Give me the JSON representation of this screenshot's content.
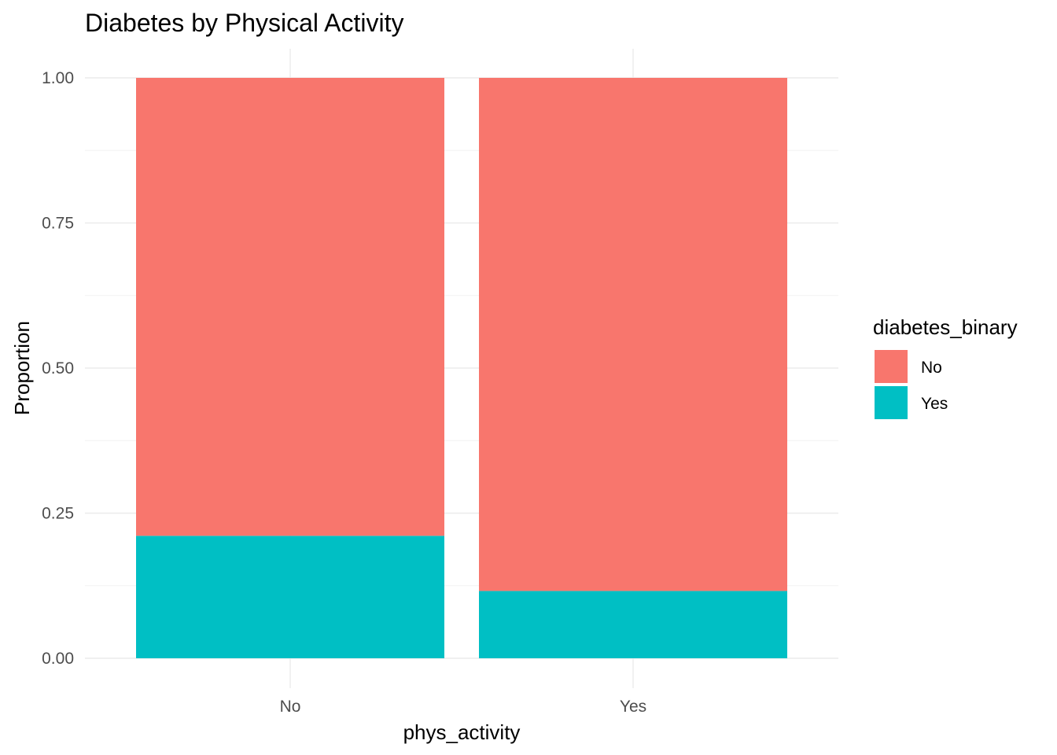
{
  "chart_data": {
    "type": "bar",
    "stacked": true,
    "position": "fill",
    "title": "Diabetes by Physical Activity",
    "xlabel": "phys_activity",
    "ylabel": "Proportion",
    "categories": [
      "No",
      "Yes"
    ],
    "series": [
      {
        "name": "Yes",
        "color": "#00BFC4",
        "values": [
          0.211,
          0.116
        ]
      },
      {
        "name": "No",
        "color": "#F8766D",
        "values": [
          0.789,
          0.884
        ]
      }
    ],
    "ylim": [
      0,
      1
    ],
    "yticks": [
      "0.00",
      "0.25",
      "0.50",
      "0.75",
      "1.00"
    ],
    "ytick_values": [
      0,
      0.25,
      0.5,
      0.75,
      1.0
    ],
    "grid": true,
    "legend": {
      "title": "diabetes_binary",
      "placement": "right",
      "items": [
        {
          "label": "No",
          "color": "#F8766D"
        },
        {
          "label": "Yes",
          "color": "#00BFC4"
        }
      ]
    }
  }
}
